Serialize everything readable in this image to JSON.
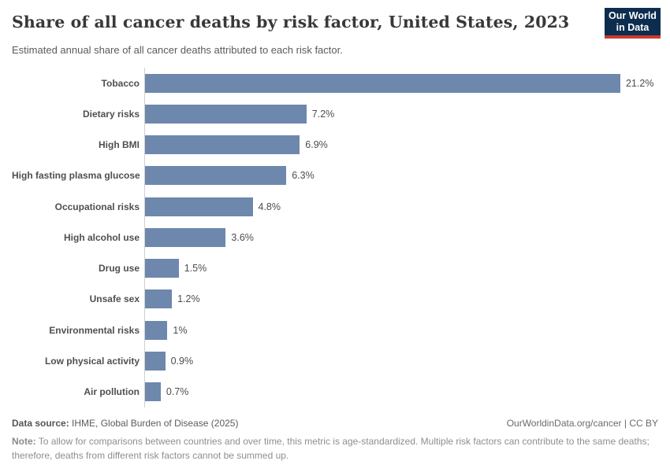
{
  "header": {
    "title": "Share of all cancer deaths by risk factor, United States, 2023",
    "subtitle": "Estimated annual share of all cancer deaths attributed to each risk factor.",
    "logo": {
      "line1": "Our World",
      "line2": "in Data"
    }
  },
  "chart_data": {
    "type": "bar",
    "orientation": "horizontal",
    "title": "Share of all cancer deaths by risk factor, United States, 2023",
    "categories": [
      "Tobacco",
      "Dietary risks",
      "High BMI",
      "High fasting plasma glucose",
      "Occupational risks",
      "High alcohol use",
      "Drug use",
      "Unsafe sex",
      "Environmental risks",
      "Low physical activity",
      "Air pollution"
    ],
    "values": [
      21.2,
      7.2,
      6.9,
      6.3,
      4.8,
      3.6,
      1.5,
      1.2,
      1.0,
      0.9,
      0.7
    ],
    "value_labels": [
      "21.2%",
      "7.2%",
      "6.9%",
      "6.3%",
      "4.8%",
      "3.6%",
      "1.5%",
      "1.2%",
      "1%",
      "0.9%",
      "0.7%"
    ],
    "unit": "%",
    "xlim": [
      0,
      22.5
    ],
    "grid": false,
    "legend": "none"
  },
  "footer": {
    "data_source_label": "Data source:",
    "data_source_text": " IHME, Global Burden of Disease (2025)",
    "link_text": "OurWorldinData.org/cancer | CC BY",
    "note_label": "Note:",
    "note_text": " To allow for comparisons between countries and over time, this metric is age-standardized. Multiple risk factors can contribute to the same deaths; therefore, deaths from different risk factors cannot be summed up."
  },
  "colors": {
    "bar": "#6e87ac",
    "axis_line": "#cfcfcf",
    "logo_bg": "#0d2d4e",
    "logo_red": "#cc3b2f",
    "title_text": "#383838"
  }
}
